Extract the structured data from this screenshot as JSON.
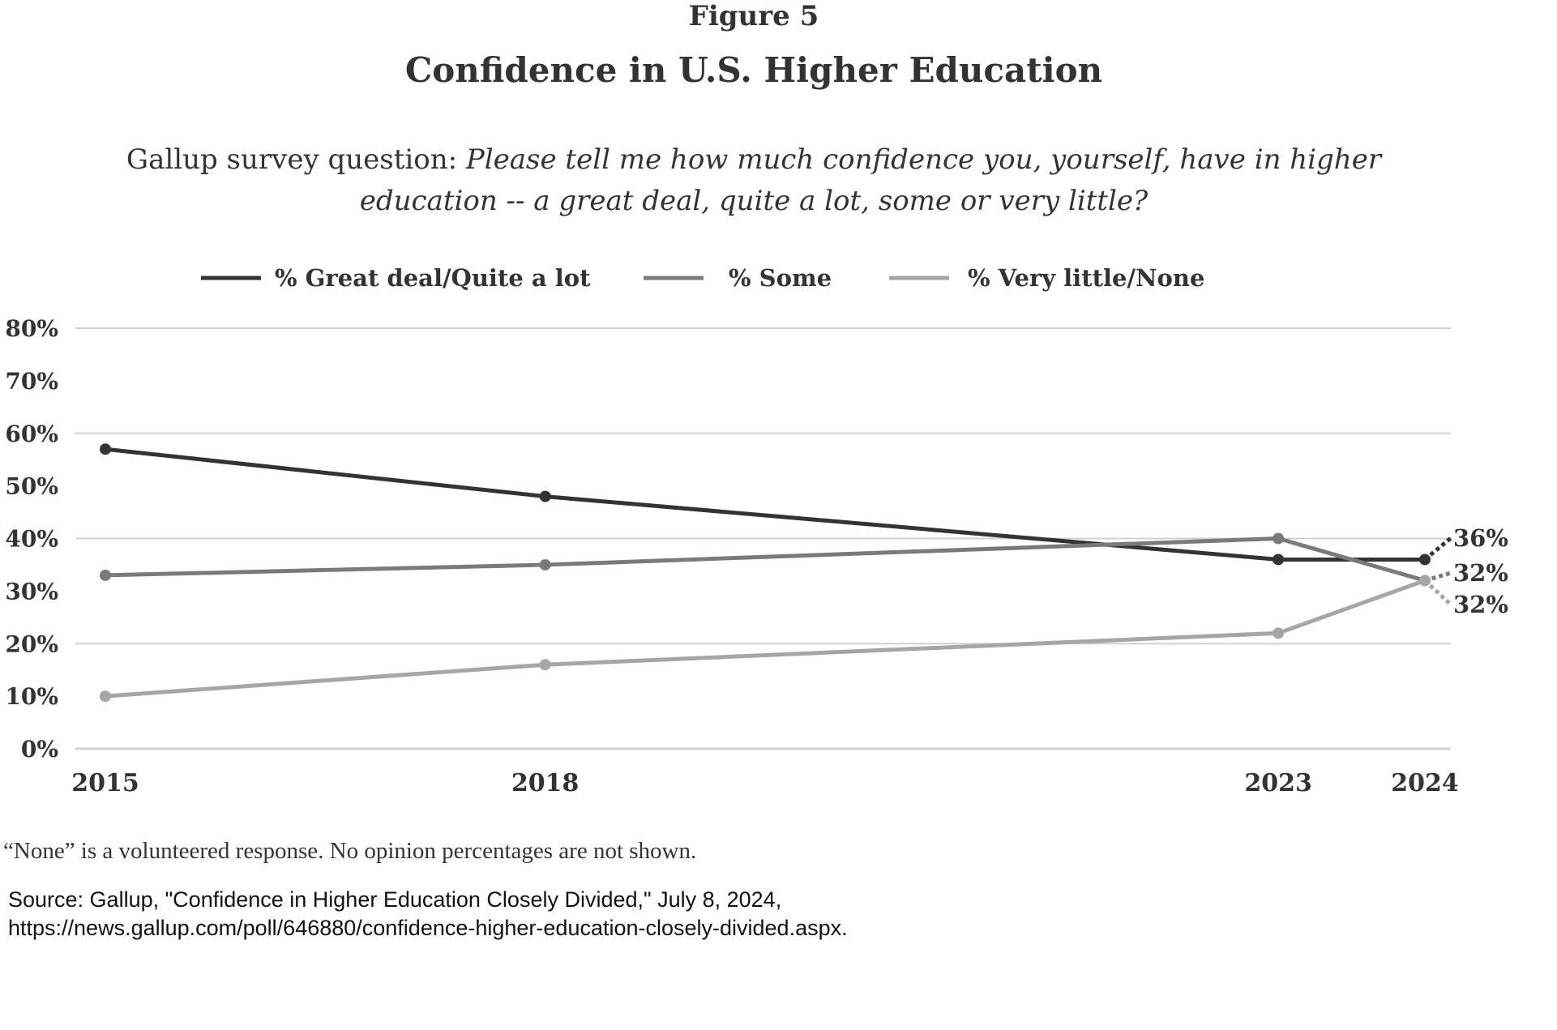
{
  "figure_label": "Figure 5",
  "chart_data": {
    "type": "line",
    "title": "Confidence in U.S. Higher Education",
    "subtitle_prefix": "Gallup survey question: ",
    "subtitle_question_line1": "Please tell me how much confidence you, yourself, have in higher",
    "subtitle_question_line2": "education -- a great deal, quite a lot, some or very little?",
    "x": [
      "2015",
      "2018",
      "2023",
      "2024"
    ],
    "y_ticks": [
      "80%",
      "70%",
      "60%",
      "50%",
      "40%",
      "30%",
      "20%",
      "10%",
      "0%"
    ],
    "ylim": [
      0,
      80
    ],
    "grid": "horizontal",
    "legend_position": "top",
    "series": [
      {
        "name": "% Great deal/Quite a lot",
        "values": [
          57,
          48,
          36,
          36
        ],
        "color": "#333333",
        "end_label": "36%"
      },
      {
        "name": "% Some",
        "values": [
          33,
          35,
          40,
          32
        ],
        "color": "#7a7a7a",
        "end_label": "32%"
      },
      {
        "name": "% Very little/None",
        "values": [
          10,
          16,
          22,
          32
        ],
        "color": "#a6a6a6",
        "end_label": "32%"
      }
    ]
  },
  "footnote": "“None” is a volunteered response. No opinion percentages are not shown.",
  "source_line1": "Source: Gallup, \"Confidence in Higher Education Closely Divided,\" July 8, 2024,",
  "source_line2": "https://news.gallup.com/poll/646880/confidence-higher-education-closely-divided.aspx."
}
